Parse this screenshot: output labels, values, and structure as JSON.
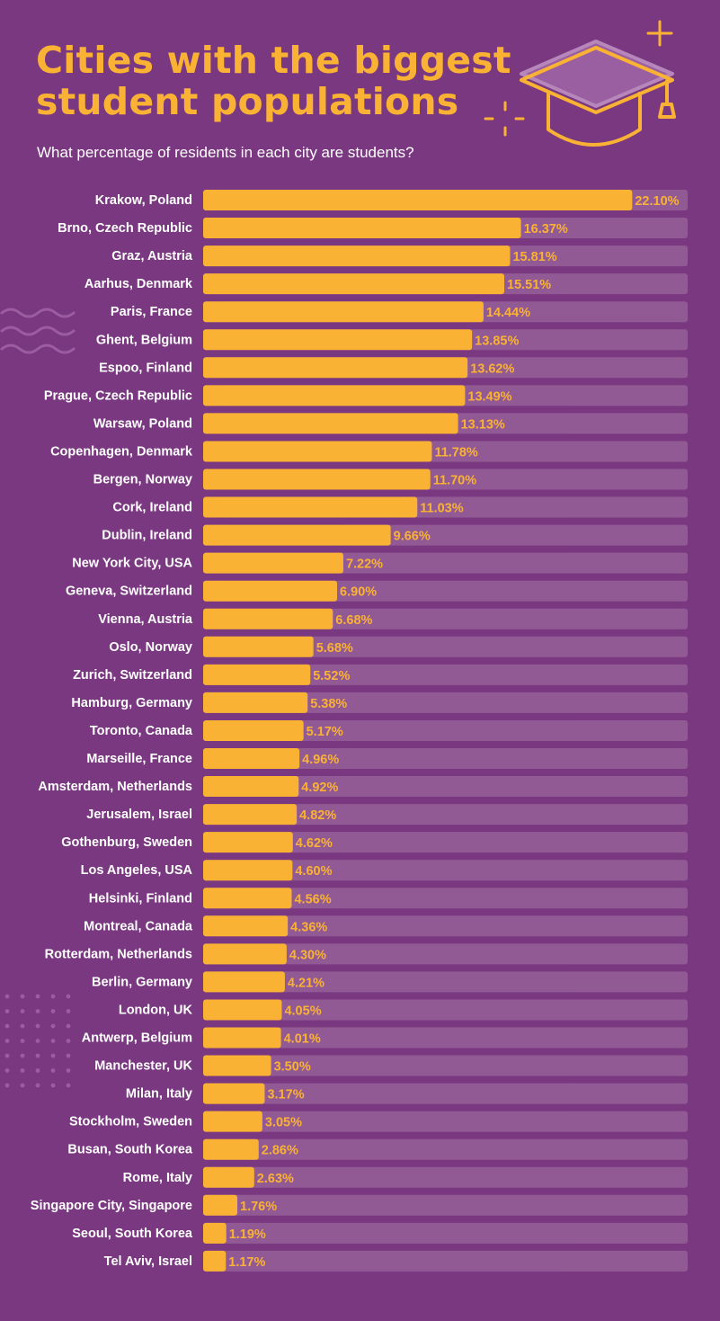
{
  "header": {
    "title": "Cities with the biggest student populations",
    "subtitle": "What percentage of residents in each city are students?"
  },
  "icons": {
    "graduation_cap": "graduation-cap-icon",
    "sparkle": "plus-sparkle-icon"
  },
  "colors": {
    "background": "#7a3880",
    "bar": "#f9b233",
    "track": "#925a95",
    "label": "#ffffff"
  },
  "chart_data": {
    "type": "bar",
    "orientation": "horizontal",
    "title": "Cities with the biggest student populations",
    "subtitle": "What percentage of residents in each city are students?",
    "xlim": [
      0,
      25
    ],
    "value_suffix": "%",
    "categories": [
      "Krakow, Poland",
      "Brno, Czech Republic",
      "Graz, Austria",
      "Aarhus, Denmark",
      "Paris, France",
      "Ghent, Belgium",
      "Espoo, Finland",
      "Prague, Czech Republic",
      "Warsaw, Poland",
      "Copenhagen, Denmark",
      "Bergen, Norway",
      "Cork, Ireland",
      "Dublin, Ireland",
      "New York City, USA",
      "Geneva, Switzerland",
      "Vienna, Austria",
      "Oslo, Norway",
      "Zurich, Switzerland",
      "Hamburg, Germany",
      "Toronto, Canada",
      "Marseille, France",
      "Amsterdam, Netherlands",
      "Jerusalem, Israel",
      "Gothenburg, Sweden",
      "Los Angeles, USA",
      "Helsinki, Finland",
      "Montreal, Canada",
      "Rotterdam, Netherlands",
      "Berlin, Germany",
      "London, UK",
      "Antwerp, Belgium",
      "Manchester, UK",
      "Milan, Italy",
      "Stockholm, Sweden",
      "Busan, South Korea",
      "Rome, Italy",
      "Singapore City, Singapore",
      "Seoul, South Korea",
      "Tel Aviv, Israel"
    ],
    "values": [
      22.1,
      16.37,
      15.81,
      15.51,
      14.44,
      13.85,
      13.62,
      13.49,
      13.13,
      11.78,
      11.7,
      11.03,
      9.66,
      7.22,
      6.9,
      6.68,
      5.68,
      5.52,
      5.38,
      5.17,
      4.96,
      4.92,
      4.82,
      4.62,
      4.6,
      4.56,
      4.36,
      4.3,
      4.21,
      4.05,
      4.01,
      3.5,
      3.17,
      3.05,
      2.86,
      2.63,
      1.76,
      1.19,
      1.17
    ],
    "value_labels": [
      "22.10%",
      "16.37%",
      "15.81%",
      "15.51%",
      "14.44%",
      "13.85%",
      "13.62%",
      "13.49%",
      "13.13%",
      "11.78%",
      "11.70%",
      "11.03%",
      "9.66%",
      "7.22%",
      "6.90%",
      "6.68%",
      "5.68%",
      "5.52%",
      "5.38%",
      "5.17%",
      "4.96%",
      "4.92%",
      "4.82%",
      "4.62%",
      "4.60%",
      "4.56%",
      "4.36%",
      "4.30%",
      "4.21%",
      "4.05%",
      "4.01%",
      "3.50%",
      "3.17%",
      "3.05%",
      "2.86%",
      "2.63%",
      "1.76%",
      "1.19%",
      "1.17%"
    ],
    "grid": false,
    "legend": "none"
  }
}
